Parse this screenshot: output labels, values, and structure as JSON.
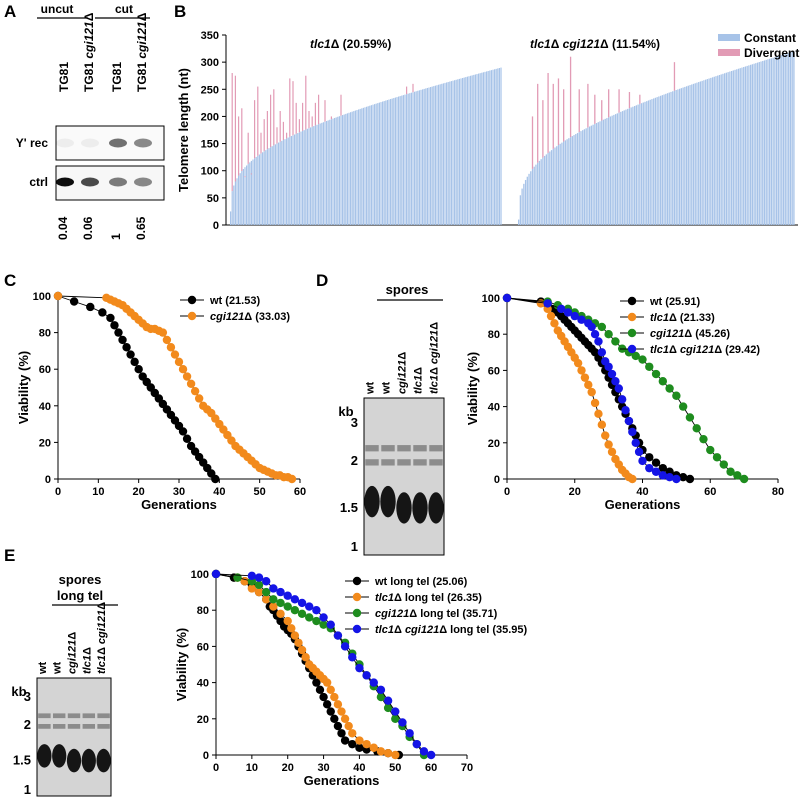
{
  "panel_letters": {
    "a": "A",
    "b": "B",
    "c": "C",
    "d": "D",
    "e": "E"
  },
  "colors": {
    "constant": "#a7c3e8",
    "divergent": "#e29bb5",
    "wt": "#000000",
    "tlc1": "#f28a1c",
    "cgi121": "#1e8c1e",
    "double": "#1414e6"
  },
  "blot_a": {
    "group1": "uncut",
    "group2": "cut",
    "lanes": [
      {
        "name": "TG81",
        "genotype": ""
      },
      {
        "name": "TG81",
        "genotype": "cgi121Δ"
      },
      {
        "name": "TG81",
        "genotype": ""
      },
      {
        "name": "TG81",
        "genotype": "cgi121Δ"
      }
    ],
    "rows": [
      "Y' rec",
      "ctrl"
    ],
    "quant": [
      "0.04",
      "0.06",
      "1",
      "0.65"
    ]
  },
  "blot_d": {
    "header": "spores",
    "kb_label": "kb",
    "kb_marks": [
      "3",
      "2",
      "1.5",
      "1"
    ],
    "lanes": [
      "wt",
      "wt",
      "cgi121Δ",
      "tlc1Δ",
      "tlc1Δ cgi121Δ"
    ]
  },
  "blot_e": {
    "header1": "spores",
    "header2": "long tel",
    "kb_label": "kb",
    "kb_marks": [
      "3",
      "2",
      "1.5",
      "1"
    ],
    "lanes": [
      "wt",
      "wt",
      "cgi121Δ",
      "tlc1Δ",
      "tlc1Δ cgi121Δ"
    ]
  },
  "chart_data": [
    {
      "id": "B",
      "type": "bar",
      "ylabel": "Telomere length (nt)",
      "ylim": [
        0,
        350
      ],
      "yticks": [
        0,
        50,
        100,
        150,
        200,
        250,
        300,
        350
      ],
      "legend": [
        {
          "name": "Constant",
          "color": "#a7c3e8"
        },
        {
          "name": "Divergent",
          "color": "#e29bb5"
        }
      ],
      "legend_position": "top-right",
      "groups": [
        {
          "label": "tlc1Δ (20.59%)",
          "n": 170,
          "constant_start": 25,
          "constant_end": 290,
          "divergent": [
            [
              1,
              280
            ],
            [
              3,
              275
            ],
            [
              5,
              200
            ],
            [
              7,
              215
            ],
            [
              9,
              90
            ],
            [
              11,
              170
            ],
            [
              13,
              95
            ],
            [
              15,
              230
            ],
            [
              17,
              255
            ],
            [
              19,
              170
            ],
            [
              21,
              195
            ],
            [
              23,
              210
            ],
            [
              25,
              240
            ],
            [
              27,
              250
            ],
            [
              29,
              180
            ],
            [
              31,
              210
            ],
            [
              33,
              190
            ],
            [
              35,
              170
            ],
            [
              37,
              270
            ],
            [
              39,
              265
            ],
            [
              41,
              225
            ],
            [
              43,
              195
            ],
            [
              45,
              225
            ],
            [
              47,
              275
            ],
            [
              49,
              210
            ],
            [
              51,
              200
            ],
            [
              53,
              225
            ],
            [
              55,
              240
            ],
            [
              59,
              230
            ],
            [
              63,
              200
            ],
            [
              69,
              240
            ],
            [
              110,
              255
            ],
            [
              114,
              260
            ]
          ]
        },
        {
          "label": "tlc1Δ cgi121Δ (11.54%)",
          "n": 160,
          "constant_start": 10,
          "constant_end": 320,
          "divergent": [
            [
              8,
              200
            ],
            [
              11,
              260
            ],
            [
              14,
              230
            ],
            [
              17,
              280
            ],
            [
              20,
              260
            ],
            [
              23,
              270
            ],
            [
              26,
              250
            ],
            [
              30,
              310
            ],
            [
              35,
              250
            ],
            [
              40,
              260
            ],
            [
              44,
              240
            ],
            [
              48,
              230
            ],
            [
              52,
              250
            ],
            [
              58,
              250
            ],
            [
              64,
              245
            ],
            [
              70,
              240
            ],
            [
              90,
              300
            ]
          ]
        }
      ]
    },
    {
      "id": "C",
      "type": "line",
      "xlabel": "Generations",
      "ylabel": "Viability (%)",
      "xlim": [
        0,
        60
      ],
      "ylim": [
        0,
        100
      ],
      "xticks": [
        0,
        10,
        20,
        30,
        40,
        50,
        60
      ],
      "yticks": [
        0,
        20,
        40,
        60,
        80,
        100
      ],
      "legend_position": "top-right",
      "series": [
        {
          "name": "wt",
          "label_suffix": " (21.53)",
          "color": "#000000",
          "x": [
            0,
            4,
            8,
            11,
            13,
            14,
            15,
            16,
            17,
            18,
            19,
            20,
            21,
            22,
            23,
            24,
            25,
            26,
            27,
            28,
            29,
            30,
            31,
            32,
            33,
            34,
            35,
            36,
            37,
            38,
            39
          ],
          "y": [
            100,
            97,
            94,
            91,
            88,
            84,
            80,
            76,
            72,
            68,
            64,
            60,
            56,
            53,
            50,
            47,
            44,
            41,
            38,
            35,
            32,
            29,
            26,
            22,
            18,
            15,
            12,
            9,
            6,
            3,
            0
          ]
        },
        {
          "name": "cgi121Δ",
          "label_suffix": " (33.03)",
          "color": "#f28a1c",
          "x": [
            0,
            12,
            13,
            14,
            15,
            16,
            17,
            18,
            19,
            20,
            21,
            22,
            23,
            24,
            25,
            26,
            27,
            28,
            29,
            30,
            31,
            32,
            33,
            34,
            35,
            36,
            37,
            38,
            39,
            40,
            41,
            42,
            43,
            44,
            45,
            46,
            47,
            48,
            49,
            50,
            51,
            52,
            53,
            54,
            55,
            56,
            57,
            58
          ],
          "y": [
            100,
            99,
            98,
            97,
            96,
            95,
            93,
            91,
            89,
            87,
            85,
            83,
            82,
            82,
            81,
            80,
            76,
            72,
            68,
            64,
            60,
            56,
            52,
            48,
            44,
            40,
            38,
            36,
            33,
            30,
            27,
            24,
            21,
            18,
            16,
            14,
            12,
            10,
            8,
            6,
            5,
            4,
            3,
            2,
            2,
            1,
            1,
            0
          ]
        }
      ]
    },
    {
      "id": "D",
      "type": "line",
      "xlabel": "Generations",
      "ylabel": "Viability (%)",
      "xlim": [
        0,
        80
      ],
      "ylim": [
        0,
        100
      ],
      "xticks": [
        0,
        20,
        40,
        60,
        80
      ],
      "yticks": [
        0,
        20,
        40,
        60,
        80,
        100
      ],
      "legend_position": "top-right",
      "series": [
        {
          "name": "wt",
          "label_suffix": " (25.91)",
          "color": "#000000",
          "x": [
            0,
            10,
            12,
            14,
            15,
            16,
            17,
            18,
            19,
            20,
            21,
            22,
            23,
            24,
            25,
            26,
            27,
            28,
            29,
            30,
            31,
            32,
            33,
            34,
            35,
            36,
            37,
            38,
            39,
            40,
            42,
            44,
            46,
            48,
            50,
            52,
            54
          ],
          "y": [
            100,
            98,
            96,
            94,
            92,
            90,
            88,
            86,
            84,
            82,
            80,
            78,
            76,
            74,
            72,
            70,
            67,
            64,
            60,
            56,
            52,
            48,
            44,
            40,
            36,
            32,
            28,
            24,
            20,
            16,
            12,
            9,
            6,
            4,
            2,
            1,
            0
          ]
        },
        {
          "name": "tlc1Δ",
          "label_suffix": " (21.33)",
          "color": "#f28a1c",
          "x": [
            0,
            10,
            12,
            13,
            14,
            15,
            16,
            17,
            18,
            19,
            20,
            21,
            22,
            23,
            24,
            25,
            26,
            27,
            28,
            29,
            30,
            31,
            32,
            33,
            34,
            35,
            36,
            37
          ],
          "y": [
            100,
            97,
            94,
            90,
            86,
            82,
            79,
            76,
            73,
            70,
            67,
            64,
            60,
            56,
            52,
            48,
            42,
            36,
            30,
            24,
            19,
            15,
            11,
            8,
            5,
            3,
            1,
            0
          ]
        },
        {
          "name": "cgi121Δ",
          "label_suffix": " (45.26)",
          "color": "#1e8c1e",
          "x": [
            0,
            12,
            15,
            18,
            20,
            22,
            24,
            26,
            28,
            30,
            32,
            34,
            36,
            38,
            40,
            42,
            44,
            46,
            48,
            50,
            52,
            54,
            56,
            58,
            60,
            62,
            64,
            66,
            68,
            70
          ],
          "y": [
            100,
            98,
            96,
            94,
            92,
            90,
            88,
            86,
            84,
            80,
            76,
            72,
            70,
            68,
            66,
            62,
            58,
            54,
            50,
            46,
            40,
            34,
            28,
            22,
            16,
            12,
            8,
            4,
            2,
            0
          ]
        },
        {
          "name": "tlc1Δ cgi121Δ",
          "label_suffix": " (29.42)",
          "color": "#1414e6",
          "x": [
            0,
            12,
            16,
            18,
            20,
            22,
            24,
            25,
            26,
            27,
            28,
            29,
            30,
            31,
            32,
            33,
            34,
            35,
            36,
            37,
            38,
            39,
            40,
            42,
            44,
            46,
            48,
            50
          ],
          "y": [
            100,
            97,
            94,
            92,
            90,
            88,
            86,
            84,
            80,
            76,
            70,
            65,
            62,
            58,
            54,
            50,
            44,
            38,
            32,
            26,
            20,
            15,
            10,
            6,
            4,
            2,
            1,
            0
          ]
        }
      ]
    },
    {
      "id": "E",
      "type": "line",
      "xlabel": "Generations",
      "ylabel": "Viability (%)",
      "xlim": [
        0,
        70
      ],
      "ylim": [
        0,
        100
      ],
      "xticks": [
        0,
        10,
        20,
        30,
        40,
        50,
        60,
        70
      ],
      "yticks": [
        0,
        20,
        40,
        60,
        80,
        100
      ],
      "legend_position": "top-right",
      "series": [
        {
          "name": "wt long tel",
          "label_suffix": " (25.06)",
          "color": "#000000",
          "x": [
            0,
            5,
            8,
            10,
            12,
            14,
            15,
            16,
            17,
            18,
            19,
            20,
            21,
            22,
            23,
            24,
            25,
            26,
            27,
            28,
            29,
            30,
            31,
            32,
            33,
            34,
            35,
            36,
            38,
            40,
            42,
            45,
            48,
            51
          ],
          "y": [
            100,
            98,
            96,
            94,
            90,
            86,
            82,
            80,
            77,
            74,
            71,
            69,
            67,
            64,
            60,
            56,
            52,
            48,
            44,
            40,
            36,
            32,
            28,
            24,
            20,
            16,
            12,
            8,
            6,
            4,
            3,
            2,
            1,
            0
          ]
        },
        {
          "name": "tlc1Δ long tel",
          "label_suffix": " (26.35)",
          "color": "#f28a1c",
          "x": [
            0,
            6,
            8,
            10,
            12,
            14,
            16,
            18,
            20,
            21,
            22,
            23,
            24,
            25,
            26,
            27,
            28,
            29,
            30,
            31,
            32,
            33,
            34,
            35,
            36,
            37,
            38,
            40,
            42,
            44,
            46,
            48,
            50
          ],
          "y": [
            100,
            98,
            96,
            92,
            90,
            86,
            82,
            78,
            74,
            70,
            66,
            62,
            58,
            54,
            50,
            48,
            46,
            44,
            42,
            40,
            36,
            32,
            28,
            24,
            20,
            16,
            12,
            8,
            6,
            4,
            2,
            1,
            0
          ]
        },
        {
          "name": "cgi121Δ long tel",
          "label_suffix": " (35.71)",
          "color": "#1e8c1e",
          "x": [
            0,
            6,
            10,
            12,
            14,
            16,
            18,
            20,
            22,
            24,
            26,
            28,
            30,
            32,
            34,
            36,
            38,
            40,
            42,
            44,
            46,
            48,
            50,
            52,
            54,
            56,
            58
          ],
          "y": [
            100,
            98,
            96,
            94,
            90,
            86,
            84,
            82,
            80,
            78,
            76,
            74,
            72,
            70,
            66,
            62,
            56,
            50,
            44,
            38,
            32,
            26,
            20,
            16,
            10,
            6,
            0
          ]
        },
        {
          "name": "tlc1Δ cgi121Δ long tel",
          "label_suffix": " (35.95)",
          "color": "#1414e6",
          "x": [
            0,
            10,
            12,
            14,
            16,
            18,
            20,
            22,
            24,
            26,
            28,
            30,
            32,
            34,
            36,
            38,
            40,
            42,
            44,
            46,
            48,
            50,
            52,
            54,
            56,
            58,
            60
          ],
          "y": [
            100,
            99,
            98,
            96,
            92,
            90,
            88,
            86,
            84,
            82,
            80,
            76,
            72,
            66,
            60,
            54,
            48,
            44,
            40,
            36,
            30,
            24,
            18,
            12,
            6,
            2,
            0
          ]
        }
      ]
    }
  ]
}
